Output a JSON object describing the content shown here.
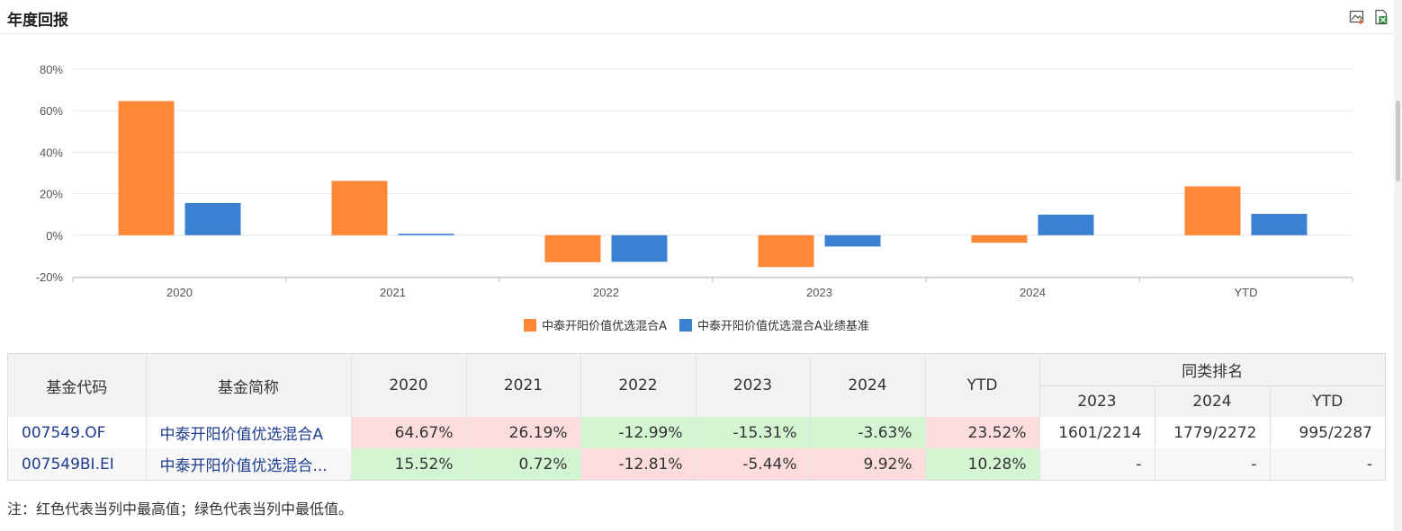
{
  "header": {
    "title": "年度回报",
    "tools": [
      {
        "icon": "image-download-icon"
      },
      {
        "icon": "excel-export-icon"
      }
    ]
  },
  "colors": {
    "fund": "#fe8836",
    "benchmark": "#3c80d2",
    "max_cell": "#fcdcdc",
    "min_cell": "#d3f5d2"
  },
  "chart_data": {
    "type": "bar",
    "title": "",
    "xlabel": "",
    "ylabel": "",
    "categories": [
      "2020",
      "2021",
      "2022",
      "2023",
      "2024",
      "YTD"
    ],
    "series": [
      {
        "name": "中泰开阳价值优选混合A",
        "color": "#fe8836",
        "values": [
          64.67,
          26.19,
          -12.99,
          -15.31,
          -3.63,
          23.52
        ]
      },
      {
        "name": "中泰开阳价值优选混合A业绩基准",
        "color": "#3c80d2",
        "values": [
          15.52,
          0.72,
          -12.81,
          -5.44,
          9.92,
          10.28
        ]
      }
    ],
    "ylim": [
      -20,
      80
    ],
    "yticks": [
      80,
      60,
      40,
      20,
      0,
      -20
    ],
    "ytick_labels": [
      "80%",
      "60%",
      "40%",
      "20%",
      "0%",
      "-20%"
    ],
    "grid": true,
    "legend_position": "bottom"
  },
  "table": {
    "headers": {
      "code": "基金代码",
      "name": "基金简称",
      "years": [
        "2020",
        "2021",
        "2022",
        "2023",
        "2024",
        "YTD"
      ],
      "rank_group": "同类排名",
      "rank_years": [
        "2023",
        "2024",
        "YTD"
      ]
    },
    "rows": [
      {
        "code": "007549.OF",
        "name": "中泰开阳价值优选混合A",
        "values": [
          "64.67%",
          "26.19%",
          "-12.99%",
          "-15.31%",
          "-3.63%",
          "23.52%"
        ],
        "highlight": [
          "max",
          "max",
          "min",
          "min",
          "min",
          "max"
        ],
        "ranks": [
          "1601/2214",
          "1779/2272",
          "995/2287"
        ]
      },
      {
        "code": "007549BI.EI",
        "name": "中泰开阳价值优选混合...",
        "values": [
          "15.52%",
          "0.72%",
          "-12.81%",
          "-5.44%",
          "9.92%",
          "10.28%"
        ],
        "highlight": [
          "min",
          "min",
          "max",
          "max",
          "max",
          "min"
        ],
        "ranks": [
          "-",
          "-",
          "-"
        ]
      }
    ]
  },
  "note": "注：红色代表当列中最高值；绿色代表当列中最低值。"
}
